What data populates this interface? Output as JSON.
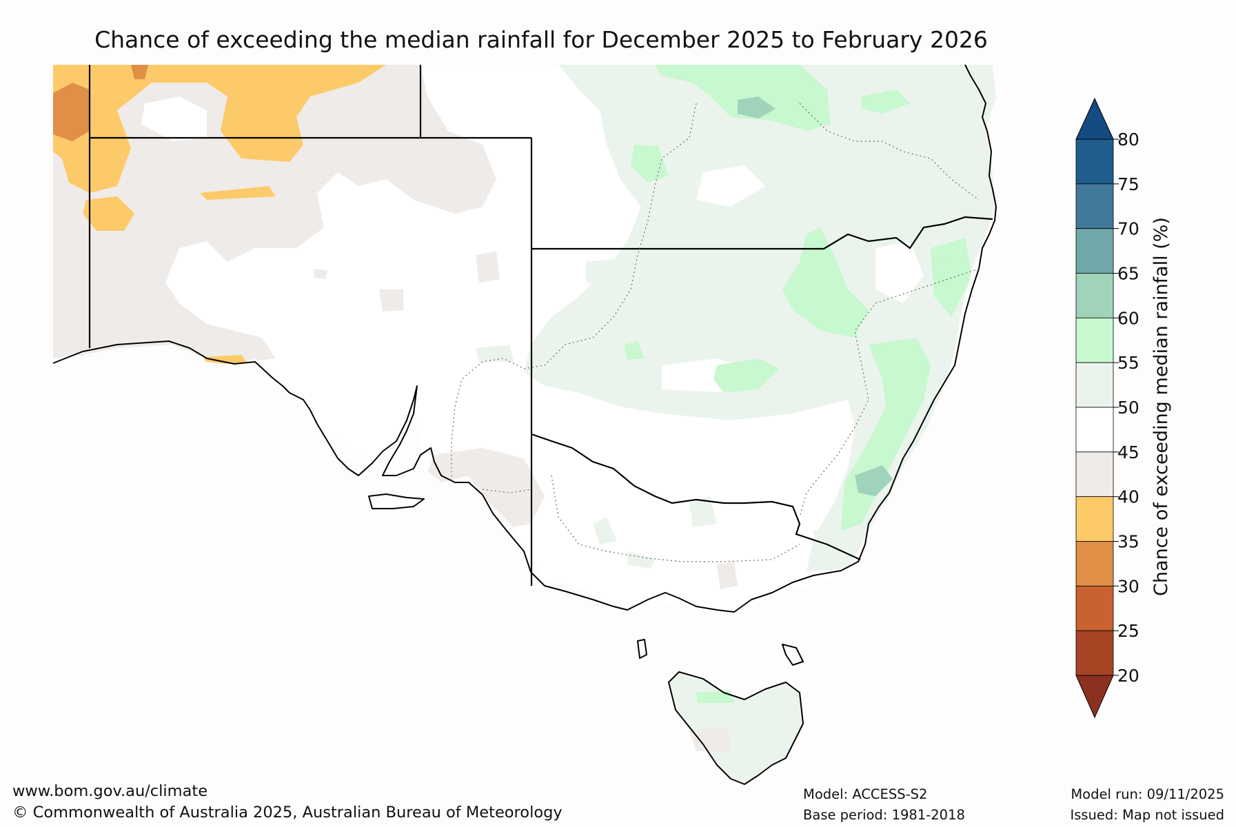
{
  "title": "Chance of exceeding the median rainfall for December 2025 to February 2026",
  "colorbar": {
    "label": "Chance of exceeding median rainfall (%)",
    "ticks": [
      80,
      75,
      70,
      65,
      60,
      55,
      50,
      45,
      40,
      35,
      30,
      25,
      20
    ],
    "bands": [
      {
        "from": 75,
        "to": 80,
        "color": "#1f5e8c"
      },
      {
        "from": 70,
        "to": 75,
        "color": "#41799a"
      },
      {
        "from": 65,
        "to": 70,
        "color": "#70a7a9"
      },
      {
        "from": 60,
        "to": 65,
        "color": "#9fd4bb"
      },
      {
        "from": 55,
        "to": 60,
        "color": "#c7f8cf"
      },
      {
        "from": 50,
        "to": 55,
        "color": "#ebf4ec"
      },
      {
        "from": 45,
        "to": 50,
        "color": "#ffffff"
      },
      {
        "from": 40,
        "to": 45,
        "color": "#efebe8"
      },
      {
        "from": 35,
        "to": 40,
        "color": "#fdca6a"
      },
      {
        "from": 30,
        "to": 35,
        "color": "#e08f47"
      },
      {
        "from": 25,
        "to": 30,
        "color": "#c9622e"
      },
      {
        "from": 20,
        "to": 25,
        "color": "#a64424"
      }
    ],
    "over_color": "#154a82",
    "under_color": "#8c3020"
  },
  "footer": {
    "website": "www.bom.gov.au/climate",
    "copyright": "© Commonwealth of Australia 2025, Australian Bureau of Meteorology",
    "model": "Model: ACCESS-S2",
    "base_period": "Base period: 1981-2018",
    "model_run": "Model run: 09/11/2025",
    "issued": "Issued: Map not issued"
  }
}
